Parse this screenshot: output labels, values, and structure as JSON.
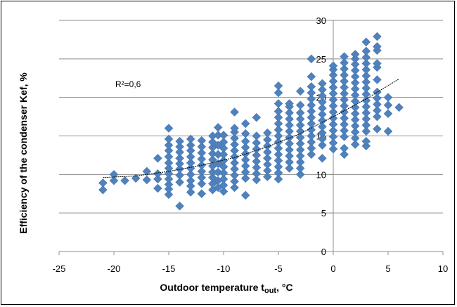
{
  "chart_data": {
    "type": "scatter",
    "xlabel": "Outdoor temperature t",
    "xlabel_sub": "out",
    "xlabel_unit": ", °C",
    "ylabel": "Efficiency of the condenser Kef, %",
    "xlim": [
      -25,
      10
    ],
    "ylim": [
      0,
      30
    ],
    "x_ticks": [
      -25,
      -20,
      -15,
      -10,
      -5,
      0,
      5,
      10
    ],
    "y_ticks": [
      0,
      5,
      10,
      15,
      20,
      25,
      30
    ],
    "grid": "horizontal",
    "marker_color": "#4F81BD",
    "trendline": {
      "type": "polynomial",
      "points": [
        [
          -21,
          9.6
        ],
        [
          -18,
          9.8
        ],
        [
          -15,
          10.4
        ],
        [
          -12,
          11.2
        ],
        [
          -9,
          12.2
        ],
        [
          -6,
          13.6
        ],
        [
          -3,
          15.3
        ],
        [
          0,
          17.5
        ],
        [
          3,
          19.8
        ],
        [
          6,
          22.4
        ]
      ]
    },
    "annotation": "R²=0,6",
    "series": [
      {
        "values": [
          [
            -21,
            8
          ],
          [
            -21,
            8.9
          ],
          [
            -20,
            9.2
          ],
          [
            -20,
            10
          ],
          [
            -19,
            9.2
          ],
          [
            -18,
            9.5
          ],
          [
            -17,
            9.3
          ],
          [
            -17,
            10.4
          ],
          [
            -16,
            8.2
          ],
          [
            -16,
            9.4
          ],
          [
            -16,
            10.1
          ],
          [
            -16,
            12.1
          ],
          [
            -15,
            7.4
          ],
          [
            -15,
            8.1
          ],
          [
            -15,
            8.7
          ],
          [
            -15,
            9.4
          ],
          [
            -15,
            10.1
          ],
          [
            -15,
            10.8
          ],
          [
            -15,
            11.5
          ],
          [
            -15,
            12.3
          ],
          [
            -15,
            13.1
          ],
          [
            -15,
            13.8
          ],
          [
            -15,
            14.6
          ],
          [
            -15,
            16
          ],
          [
            -14,
            5.9
          ],
          [
            -14,
            9
          ],
          [
            -14,
            9.9
          ],
          [
            -14,
            10.7
          ],
          [
            -14,
            11.4
          ],
          [
            -14,
            12.1
          ],
          [
            -14,
            12.9
          ],
          [
            -14,
            13.6
          ],
          [
            -14,
            14.3
          ],
          [
            -13,
            7.7
          ],
          [
            -13,
            8.5
          ],
          [
            -13,
            9.2
          ],
          [
            -13,
            10
          ],
          [
            -13,
            10.8
          ],
          [
            -13,
            11.5
          ],
          [
            -13,
            12.3
          ],
          [
            -13,
            13.1
          ],
          [
            -13,
            13.8
          ],
          [
            -13,
            14.6
          ],
          [
            -12,
            7.5
          ],
          [
            -12,
            8.8
          ],
          [
            -12,
            9.6
          ],
          [
            -12,
            10.4
          ],
          [
            -12,
            11.2
          ],
          [
            -12,
            12
          ],
          [
            -12,
            12.8
          ],
          [
            -12,
            13.6
          ],
          [
            -12,
            14.4
          ],
          [
            -11,
            8
          ],
          [
            -11,
            8.8
          ],
          [
            -11,
            9.6
          ],
          [
            -11,
            10.3
          ],
          [
            -11,
            11.1
          ],
          [
            -11,
            11.9
          ],
          [
            -11,
            12.7
          ],
          [
            -11,
            13.5
          ],
          [
            -11,
            14.2
          ],
          [
            -11,
            15
          ],
          [
            -10.5,
            8.3
          ],
          [
            -10.5,
            9.2
          ],
          [
            -10.5,
            10.3
          ],
          [
            -10.5,
            11.4
          ],
          [
            -10.5,
            12.6
          ],
          [
            -10.5,
            13.8
          ],
          [
            -10.5,
            15.1
          ],
          [
            -10.5,
            16.1
          ],
          [
            -10,
            7.8
          ],
          [
            -10,
            8.6
          ],
          [
            -10,
            9.4
          ],
          [
            -10,
            10.2
          ],
          [
            -10,
            11
          ],
          [
            -10,
            11.8
          ],
          [
            -10,
            12.6
          ],
          [
            -10,
            13.4
          ],
          [
            -10,
            14.2
          ],
          [
            -10,
            15.1
          ],
          [
            -9,
            8.3
          ],
          [
            -9,
            9.1
          ],
          [
            -9,
            9.9
          ],
          [
            -9,
            10.7
          ],
          [
            -9,
            11.5
          ],
          [
            -9,
            12.3
          ],
          [
            -9,
            13.1
          ],
          [
            -9,
            13.9
          ],
          [
            -9,
            14.7
          ],
          [
            -9,
            15.5
          ],
          [
            -9,
            16
          ],
          [
            -9,
            18.1
          ],
          [
            -8,
            7.3
          ],
          [
            -8,
            9.5
          ],
          [
            -8,
            10.3
          ],
          [
            -8,
            11.1
          ],
          [
            -8,
            11.9
          ],
          [
            -8,
            12.7
          ],
          [
            -8,
            13.5
          ],
          [
            -8,
            14.3
          ],
          [
            -8,
            15.3
          ],
          [
            -8,
            16.6
          ],
          [
            -7,
            9.3
          ],
          [
            -7,
            10.1
          ],
          [
            -7,
            10.9
          ],
          [
            -7,
            11.7
          ],
          [
            -7,
            12.5
          ],
          [
            -7,
            13.3
          ],
          [
            -7,
            14.1
          ],
          [
            -7,
            15
          ],
          [
            -7,
            17.4
          ],
          [
            -6,
            9.7
          ],
          [
            -6,
            10.5
          ],
          [
            -6,
            11.3
          ],
          [
            -6,
            12.1
          ],
          [
            -6,
            12.9
          ],
          [
            -6,
            13.7
          ],
          [
            -6,
            14.5
          ],
          [
            -6,
            15.4
          ],
          [
            -5,
            9.4
          ],
          [
            -5,
            10.2
          ],
          [
            -5,
            11
          ],
          [
            -5,
            11.8
          ],
          [
            -5,
            12.6
          ],
          [
            -5,
            13.4
          ],
          [
            -5,
            14.2
          ],
          [
            -5,
            15
          ],
          [
            -5,
            15.8
          ],
          [
            -5,
            16.6
          ],
          [
            -5,
            17.4
          ],
          [
            -5,
            18.2
          ],
          [
            -5,
            19.2
          ],
          [
            -5,
            20.6
          ],
          [
            -5,
            21.5
          ],
          [
            -4,
            10.8
          ],
          [
            -4,
            11.6
          ],
          [
            -4,
            12.4
          ],
          [
            -4,
            13.2
          ],
          [
            -4,
            14
          ],
          [
            -4,
            14.8
          ],
          [
            -4,
            15.6
          ],
          [
            -4,
            16.4
          ],
          [
            -4,
            17.2
          ],
          [
            -4,
            18
          ],
          [
            -4,
            18.8
          ],
          [
            -4,
            19.2
          ],
          [
            -3,
            10
          ],
          [
            -3,
            10.8
          ],
          [
            -3,
            11.6
          ],
          [
            -3,
            12.4
          ],
          [
            -3,
            13.2
          ],
          [
            -3,
            14
          ],
          [
            -3,
            14.8
          ],
          [
            -3,
            15.6
          ],
          [
            -3,
            16.4
          ],
          [
            -3,
            17.2
          ],
          [
            -3,
            18
          ],
          [
            -3,
            19
          ],
          [
            -3,
            20.8
          ],
          [
            -2,
            12.6
          ],
          [
            -2,
            13.4
          ],
          [
            -2,
            14.2
          ],
          [
            -2,
            15
          ],
          [
            -2,
            15.8
          ],
          [
            -2,
            16.6
          ],
          [
            -2,
            17.4
          ],
          [
            -2,
            18.2
          ],
          [
            -2,
            19
          ],
          [
            -2,
            19.8
          ],
          [
            -2,
            20.6
          ],
          [
            -2,
            21.4
          ],
          [
            -2,
            22.7
          ],
          [
            -2,
            25
          ],
          [
            -1,
            12.1
          ],
          [
            -1,
            13.8
          ],
          [
            -1,
            14.6
          ],
          [
            -1,
            15.4
          ],
          [
            -1,
            16.2
          ],
          [
            -1,
            17
          ],
          [
            -1,
            17.8
          ],
          [
            -1,
            18.6
          ],
          [
            -1,
            19.4
          ],
          [
            -1,
            20.2
          ],
          [
            -1,
            21
          ],
          [
            -1,
            21.8
          ],
          [
            0,
            13.3
          ],
          [
            0,
            14.1
          ],
          [
            0,
            14.9
          ],
          [
            0,
            15.7
          ],
          [
            0,
            16.5
          ],
          [
            0,
            17.3
          ],
          [
            0,
            18.1
          ],
          [
            0,
            18.9
          ],
          [
            0,
            19.7
          ],
          [
            0,
            20.5
          ],
          [
            0,
            21.3
          ],
          [
            0,
            22.1
          ],
          [
            0,
            22.9
          ],
          [
            0,
            23.6
          ],
          [
            0,
            24.1
          ],
          [
            1,
            12.6
          ],
          [
            1,
            13.4
          ],
          [
            1,
            14.9
          ],
          [
            1,
            15.7
          ],
          [
            1,
            16.5
          ],
          [
            1,
            17.3
          ],
          [
            1,
            18.1
          ],
          [
            1,
            18.9
          ],
          [
            1,
            19.7
          ],
          [
            1,
            20.5
          ],
          [
            1,
            21.3
          ],
          [
            1,
            22.1
          ],
          [
            1,
            22.9
          ],
          [
            1,
            23.7
          ],
          [
            1,
            24.5
          ],
          [
            1,
            25.3
          ],
          [
            2,
            13.9
          ],
          [
            2,
            14.7
          ],
          [
            2,
            15.5
          ],
          [
            2,
            16.3
          ],
          [
            2,
            17.1
          ],
          [
            2,
            17.9
          ],
          [
            2,
            18.7
          ],
          [
            2,
            19.5
          ],
          [
            2,
            20.3
          ],
          [
            2,
            21.1
          ],
          [
            2,
            21.9
          ],
          [
            2,
            22.7
          ],
          [
            2,
            23.5
          ],
          [
            2,
            24.3
          ],
          [
            2,
            25
          ],
          [
            2,
            25.6
          ],
          [
            3,
            13.7
          ],
          [
            3,
            14.3
          ],
          [
            3,
            15.6
          ],
          [
            3,
            16.4
          ],
          [
            3,
            17.2
          ],
          [
            3,
            18
          ],
          [
            3,
            18.8
          ],
          [
            3,
            19.6
          ],
          [
            3,
            20.4
          ],
          [
            3,
            21.2
          ],
          [
            3,
            22
          ],
          [
            3,
            22.8
          ],
          [
            3,
            23.6
          ],
          [
            3,
            24.4
          ],
          [
            3,
            25.2
          ],
          [
            3,
            26
          ],
          [
            3,
            27.2
          ],
          [
            4,
            15.9
          ],
          [
            4,
            17.5
          ],
          [
            4,
            18.3
          ],
          [
            4,
            19.1
          ],
          [
            4,
            19.9
          ],
          [
            4,
            20.7
          ],
          [
            4,
            22.3
          ],
          [
            4,
            23.9
          ],
          [
            4,
            24.4
          ],
          [
            4,
            26.1
          ],
          [
            4,
            26.6
          ],
          [
            4,
            27.9
          ],
          [
            5,
            15.6
          ],
          [
            5,
            17.9
          ],
          [
            5,
            19
          ],
          [
            5,
            20
          ],
          [
            6,
            18.7
          ]
        ]
      }
    ]
  }
}
